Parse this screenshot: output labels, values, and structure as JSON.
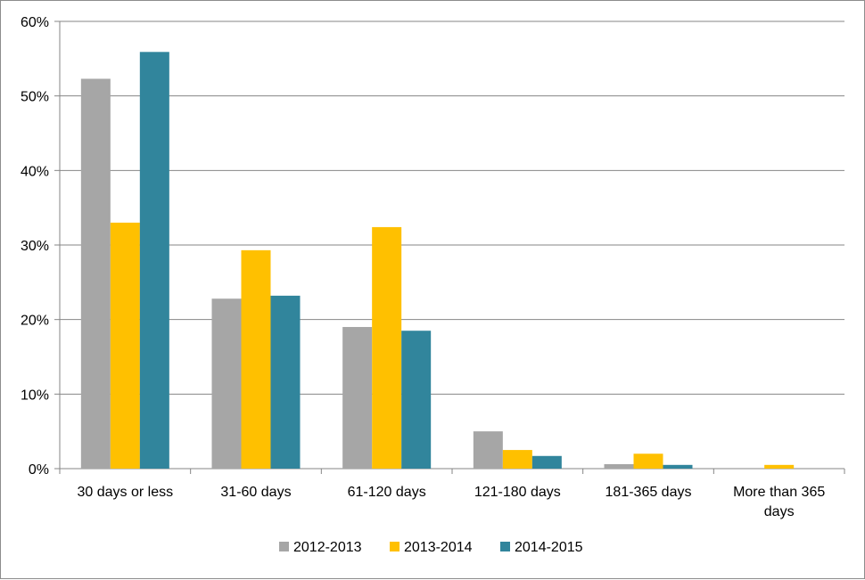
{
  "chart_data": {
    "type": "bar",
    "title": "",
    "xlabel": "",
    "ylabel": "",
    "ylim": [
      0,
      60
    ],
    "y_ticks": [
      0,
      10,
      20,
      30,
      40,
      50,
      60
    ],
    "y_tick_labels": [
      "0%",
      "10%",
      "20%",
      "30%",
      "40%",
      "50%",
      "60%"
    ],
    "y_unit": "%",
    "grid": "horizontal",
    "legend_position": "bottom",
    "categories": [
      [
        "30 days or less"
      ],
      [
        "31-60 days"
      ],
      [
        "61-120 days"
      ],
      [
        "121-180 days"
      ],
      [
        "181-365 days"
      ],
      [
        "More than 365",
        "days"
      ]
    ],
    "series": [
      {
        "name": "2012-2013",
        "color": "#a6a6a6",
        "values": [
          52.3,
          22.8,
          19.0,
          5.0,
          0.6,
          0.0
        ]
      },
      {
        "name": "2013-2014",
        "color": "#ffc000",
        "values": [
          33.0,
          29.3,
          32.4,
          2.5,
          2.0,
          0.5
        ]
      },
      {
        "name": "2014-2015",
        "color": "#31859c",
        "values": [
          55.9,
          23.2,
          18.5,
          1.7,
          0.5,
          0.0
        ]
      }
    ]
  }
}
